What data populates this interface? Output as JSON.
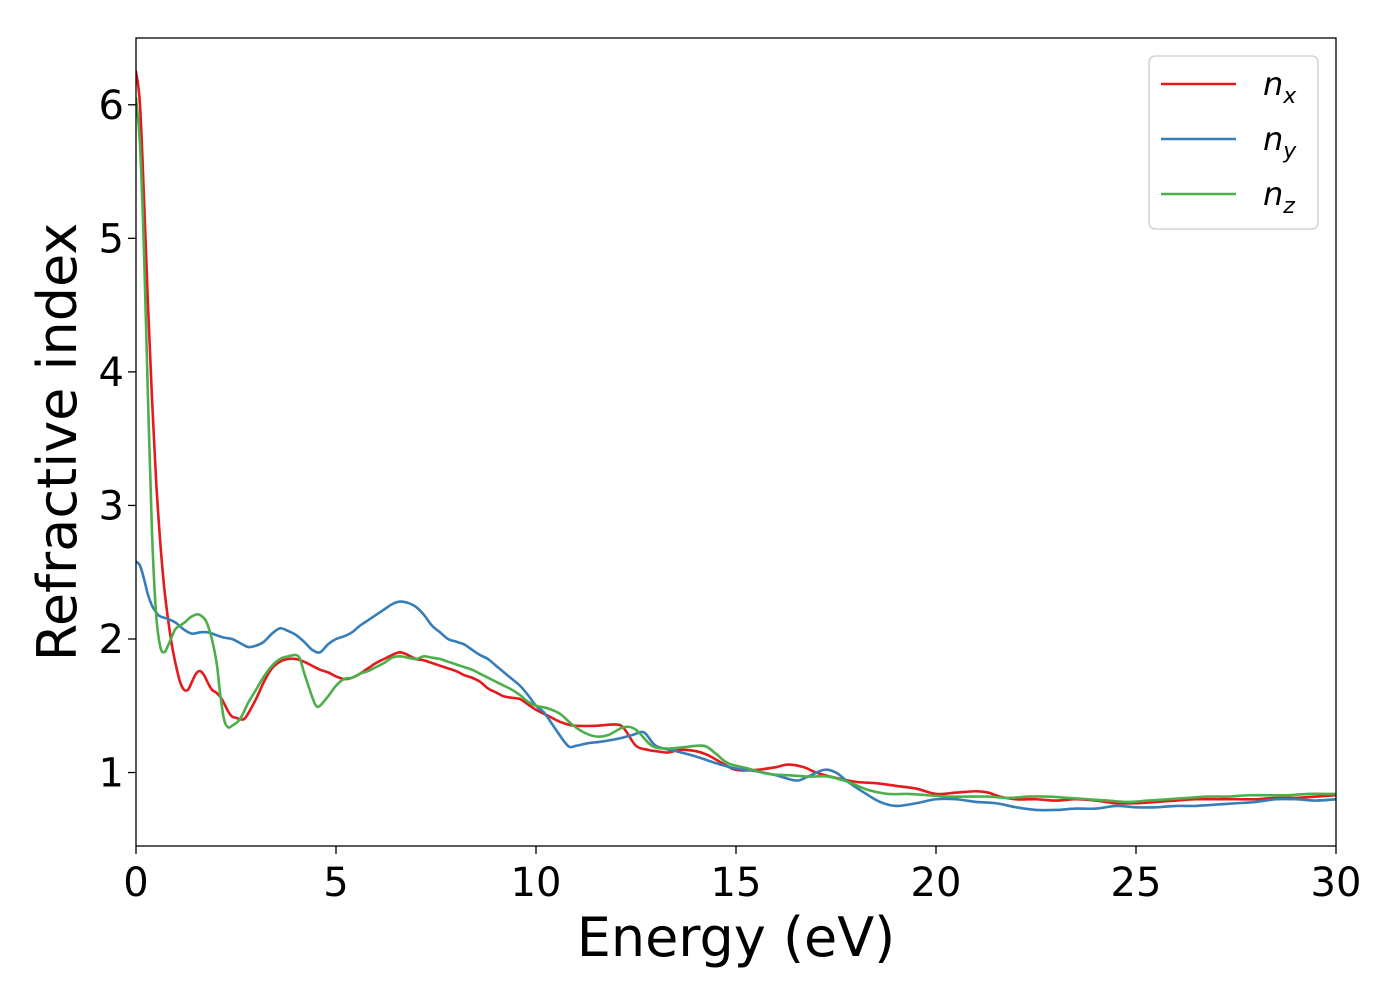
{
  "chart_data": {
    "type": "line",
    "title": "",
    "xlabel": "Energy (eV)",
    "ylabel": "Refractive index",
    "xlim": [
      0,
      30
    ],
    "ylim": [
      0.45,
      6.5
    ],
    "xticks": [
      0,
      5,
      10,
      15,
      20,
      25,
      30
    ],
    "yticks": [
      1,
      2,
      3,
      4,
      5,
      6
    ],
    "grid": false,
    "legend": "top-right",
    "series": [
      {
        "name": "n",
        "subscript": "x",
        "color": "#e41a1c",
        "points": [
          [
            0,
            6.25
          ],
          [
            0.1,
            6.0
          ],
          [
            0.2,
            5.3
          ],
          [
            0.3,
            4.5
          ],
          [
            0.4,
            3.8
          ],
          [
            0.5,
            3.2
          ],
          [
            0.6,
            2.75
          ],
          [
            0.7,
            2.4
          ],
          [
            0.8,
            2.15
          ],
          [
            0.9,
            1.95
          ],
          [
            1.0,
            1.8
          ],
          [
            1.1,
            1.68
          ],
          [
            1.2,
            1.62
          ],
          [
            1.3,
            1.62
          ],
          [
            1.4,
            1.68
          ],
          [
            1.5,
            1.74
          ],
          [
            1.6,
            1.76
          ],
          [
            1.7,
            1.73
          ],
          [
            1.8,
            1.67
          ],
          [
            1.9,
            1.62
          ],
          [
            2.0,
            1.6
          ],
          [
            2.1,
            1.57
          ],
          [
            2.2,
            1.52
          ],
          [
            2.3,
            1.46
          ],
          [
            2.4,
            1.42
          ],
          [
            2.5,
            1.41
          ],
          [
            2.6,
            1.4
          ],
          [
            2.7,
            1.4
          ],
          [
            2.8,
            1.44
          ],
          [
            3.0,
            1.55
          ],
          [
            3.2,
            1.68
          ],
          [
            3.4,
            1.78
          ],
          [
            3.6,
            1.83
          ],
          [
            3.8,
            1.85
          ],
          [
            4.0,
            1.85
          ],
          [
            4.2,
            1.83
          ],
          [
            4.4,
            1.8
          ],
          [
            4.6,
            1.77
          ],
          [
            4.8,
            1.75
          ],
          [
            5.0,
            1.72
          ],
          [
            5.2,
            1.7
          ],
          [
            5.4,
            1.71
          ],
          [
            5.6,
            1.74
          ],
          [
            5.8,
            1.78
          ],
          [
            6.0,
            1.82
          ],
          [
            6.2,
            1.85
          ],
          [
            6.4,
            1.88
          ],
          [
            6.6,
            1.9
          ],
          [
            6.8,
            1.88
          ],
          [
            7.0,
            1.85
          ],
          [
            7.2,
            1.84
          ],
          [
            7.4,
            1.82
          ],
          [
            7.6,
            1.8
          ],
          [
            7.8,
            1.78
          ],
          [
            8.0,
            1.76
          ],
          [
            8.2,
            1.73
          ],
          [
            8.4,
            1.71
          ],
          [
            8.6,
            1.68
          ],
          [
            8.8,
            1.63
          ],
          [
            9.0,
            1.6
          ],
          [
            9.2,
            1.57
          ],
          [
            9.4,
            1.56
          ],
          [
            9.6,
            1.55
          ],
          [
            9.8,
            1.51
          ],
          [
            10.0,
            1.47
          ],
          [
            10.2,
            1.44
          ],
          [
            10.4,
            1.41
          ],
          [
            10.6,
            1.38
          ],
          [
            10.8,
            1.36
          ],
          [
            11.0,
            1.35
          ],
          [
            11.5,
            1.35
          ],
          [
            12.0,
            1.36
          ],
          [
            12.2,
            1.33
          ],
          [
            12.5,
            1.2
          ],
          [
            12.8,
            1.17
          ],
          [
            13.0,
            1.16
          ],
          [
            13.3,
            1.15
          ],
          [
            13.6,
            1.17
          ],
          [
            14.0,
            1.16
          ],
          [
            14.3,
            1.13
          ],
          [
            14.6,
            1.08
          ],
          [
            15.0,
            1.02
          ],
          [
            15.5,
            1.02
          ],
          [
            16.0,
            1.04
          ],
          [
            16.3,
            1.06
          ],
          [
            16.7,
            1.04
          ],
          [
            17.0,
            1.0
          ],
          [
            17.5,
            0.96
          ],
          [
            18.0,
            0.93
          ],
          [
            18.5,
            0.92
          ],
          [
            19.0,
            0.9
          ],
          [
            19.5,
            0.88
          ],
          [
            20.0,
            0.84
          ],
          [
            20.5,
            0.85
          ],
          [
            21.0,
            0.86
          ],
          [
            21.3,
            0.85
          ],
          [
            21.6,
            0.82
          ],
          [
            22.0,
            0.8
          ],
          [
            22.5,
            0.8
          ],
          [
            23.0,
            0.79
          ],
          [
            23.5,
            0.8
          ],
          [
            24.0,
            0.79
          ],
          [
            24.5,
            0.77
          ],
          [
            25.0,
            0.77
          ],
          [
            25.5,
            0.78
          ],
          [
            26.0,
            0.79
          ],
          [
            26.5,
            0.8
          ],
          [
            27.0,
            0.8
          ],
          [
            27.5,
            0.8
          ],
          [
            28.0,
            0.8
          ],
          [
            28.5,
            0.81
          ],
          [
            29.0,
            0.81
          ],
          [
            29.5,
            0.82
          ],
          [
            30.0,
            0.83
          ]
        ]
      },
      {
        "name": "n",
        "subscript": "y",
        "color": "#377eb8",
        "points": [
          [
            0,
            2.58
          ],
          [
            0.1,
            2.55
          ],
          [
            0.2,
            2.45
          ],
          [
            0.3,
            2.33
          ],
          [
            0.4,
            2.25
          ],
          [
            0.5,
            2.2
          ],
          [
            0.6,
            2.17
          ],
          [
            0.8,
            2.15
          ],
          [
            1.0,
            2.12
          ],
          [
            1.2,
            2.07
          ],
          [
            1.4,
            2.04
          ],
          [
            1.6,
            2.05
          ],
          [
            1.8,
            2.05
          ],
          [
            2.0,
            2.03
          ],
          [
            2.2,
            2.01
          ],
          [
            2.4,
            2.0
          ],
          [
            2.6,
            1.97
          ],
          [
            2.8,
            1.94
          ],
          [
            3.0,
            1.95
          ],
          [
            3.2,
            1.98
          ],
          [
            3.4,
            2.04
          ],
          [
            3.6,
            2.08
          ],
          [
            3.8,
            2.06
          ],
          [
            4.0,
            2.03
          ],
          [
            4.2,
            1.98
          ],
          [
            4.4,
            1.92
          ],
          [
            4.6,
            1.9
          ],
          [
            4.8,
            1.96
          ],
          [
            5.0,
            2.0
          ],
          [
            5.2,
            2.02
          ],
          [
            5.4,
            2.05
          ],
          [
            5.6,
            2.1
          ],
          [
            5.8,
            2.14
          ],
          [
            6.0,
            2.18
          ],
          [
            6.2,
            2.22
          ],
          [
            6.4,
            2.26
          ],
          [
            6.6,
            2.28
          ],
          [
            6.8,
            2.27
          ],
          [
            7.0,
            2.24
          ],
          [
            7.2,
            2.18
          ],
          [
            7.4,
            2.1
          ],
          [
            7.6,
            2.05
          ],
          [
            7.8,
            2.0
          ],
          [
            8.0,
            1.98
          ],
          [
            8.2,
            1.96
          ],
          [
            8.4,
            1.92
          ],
          [
            8.6,
            1.88
          ],
          [
            8.8,
            1.85
          ],
          [
            9.0,
            1.8
          ],
          [
            9.2,
            1.75
          ],
          [
            9.4,
            1.7
          ],
          [
            9.6,
            1.65
          ],
          [
            9.8,
            1.58
          ],
          [
            10.0,
            1.5
          ],
          [
            10.2,
            1.45
          ],
          [
            10.5,
            1.32
          ],
          [
            10.8,
            1.2
          ],
          [
            11.0,
            1.2
          ],
          [
            11.3,
            1.22
          ],
          [
            11.6,
            1.23
          ],
          [
            12.0,
            1.25
          ],
          [
            12.4,
            1.28
          ],
          [
            12.7,
            1.3
          ],
          [
            13.0,
            1.2
          ],
          [
            13.5,
            1.16
          ],
          [
            14.0,
            1.12
          ],
          [
            14.5,
            1.07
          ],
          [
            15.0,
            1.03
          ],
          [
            15.5,
            1.01
          ],
          [
            16.0,
            0.98
          ],
          [
            16.5,
            0.94
          ],
          [
            16.8,
            0.97
          ],
          [
            17.2,
            1.02
          ],
          [
            17.5,
            1.0
          ],
          [
            17.8,
            0.93
          ],
          [
            18.2,
            0.85
          ],
          [
            18.6,
            0.78
          ],
          [
            19.0,
            0.75
          ],
          [
            19.5,
            0.77
          ],
          [
            20.0,
            0.8
          ],
          [
            20.5,
            0.8
          ],
          [
            21.0,
            0.78
          ],
          [
            21.5,
            0.77
          ],
          [
            22.0,
            0.74
          ],
          [
            22.5,
            0.72
          ],
          [
            23.0,
            0.72
          ],
          [
            23.5,
            0.73
          ],
          [
            24.0,
            0.73
          ],
          [
            24.5,
            0.75
          ],
          [
            25.0,
            0.74
          ],
          [
            25.5,
            0.74
          ],
          [
            26.0,
            0.75
          ],
          [
            26.5,
            0.75
          ],
          [
            27.0,
            0.76
          ],
          [
            27.5,
            0.77
          ],
          [
            28.0,
            0.78
          ],
          [
            28.5,
            0.8
          ],
          [
            29.0,
            0.8
          ],
          [
            29.5,
            0.79
          ],
          [
            30.0,
            0.8
          ]
        ]
      },
      {
        "name": "n",
        "subscript": "z",
        "color": "#4daf4a",
        "points": [
          [
            0,
            6.05
          ],
          [
            0.1,
            5.7
          ],
          [
            0.2,
            4.9
          ],
          [
            0.3,
            3.8
          ],
          [
            0.4,
            2.8
          ],
          [
            0.5,
            2.2
          ],
          [
            0.6,
            1.95
          ],
          [
            0.7,
            1.9
          ],
          [
            0.8,
            1.95
          ],
          [
            0.9,
            2.02
          ],
          [
            1.0,
            2.08
          ],
          [
            1.2,
            2.12
          ],
          [
            1.4,
            2.17
          ],
          [
            1.6,
            2.18
          ],
          [
            1.8,
            2.1
          ],
          [
            2.0,
            1.85
          ],
          [
            2.1,
            1.6
          ],
          [
            2.2,
            1.4
          ],
          [
            2.3,
            1.34
          ],
          [
            2.4,
            1.35
          ],
          [
            2.6,
            1.4
          ],
          [
            2.8,
            1.52
          ],
          [
            3.0,
            1.62
          ],
          [
            3.2,
            1.72
          ],
          [
            3.4,
            1.8
          ],
          [
            3.6,
            1.85
          ],
          [
            3.8,
            1.87
          ],
          [
            4.0,
            1.88
          ],
          [
            4.1,
            1.85
          ],
          [
            4.2,
            1.75
          ],
          [
            4.4,
            1.57
          ],
          [
            4.5,
            1.5
          ],
          [
            4.6,
            1.5
          ],
          [
            4.8,
            1.57
          ],
          [
            5.0,
            1.65
          ],
          [
            5.2,
            1.7
          ],
          [
            5.4,
            1.71
          ],
          [
            5.6,
            1.74
          ],
          [
            5.8,
            1.76
          ],
          [
            6.0,
            1.79
          ],
          [
            6.2,
            1.82
          ],
          [
            6.4,
            1.86
          ],
          [
            6.6,
            1.87
          ],
          [
            6.8,
            1.86
          ],
          [
            7.0,
            1.85
          ],
          [
            7.2,
            1.87
          ],
          [
            7.4,
            1.86
          ],
          [
            7.6,
            1.85
          ],
          [
            7.8,
            1.83
          ],
          [
            8.0,
            1.81
          ],
          [
            8.2,
            1.79
          ],
          [
            8.4,
            1.77
          ],
          [
            8.6,
            1.74
          ],
          [
            8.8,
            1.71
          ],
          [
            9.0,
            1.68
          ],
          [
            9.2,
            1.65
          ],
          [
            9.4,
            1.62
          ],
          [
            9.6,
            1.58
          ],
          [
            9.8,
            1.53
          ],
          [
            10.0,
            1.5
          ],
          [
            10.3,
            1.48
          ],
          [
            10.6,
            1.44
          ],
          [
            10.9,
            1.36
          ],
          [
            11.2,
            1.3
          ],
          [
            11.5,
            1.27
          ],
          [
            11.8,
            1.28
          ],
          [
            12.2,
            1.34
          ],
          [
            12.5,
            1.32
          ],
          [
            12.9,
            1.2
          ],
          [
            13.3,
            1.18
          ],
          [
            13.7,
            1.19
          ],
          [
            14.2,
            1.2
          ],
          [
            14.5,
            1.14
          ],
          [
            14.8,
            1.07
          ],
          [
            15.3,
            1.03
          ],
          [
            15.8,
            0.99
          ],
          [
            16.3,
            0.98
          ],
          [
            16.8,
            0.97
          ],
          [
            17.3,
            0.97
          ],
          [
            17.8,
            0.93
          ],
          [
            18.3,
            0.87
          ],
          [
            18.8,
            0.84
          ],
          [
            19.3,
            0.84
          ],
          [
            19.8,
            0.83
          ],
          [
            20.3,
            0.82
          ],
          [
            20.8,
            0.82
          ],
          [
            21.3,
            0.82
          ],
          [
            21.8,
            0.81
          ],
          [
            22.3,
            0.82
          ],
          [
            22.8,
            0.82
          ],
          [
            23.3,
            0.81
          ],
          [
            23.8,
            0.8
          ],
          [
            24.3,
            0.79
          ],
          [
            24.8,
            0.78
          ],
          [
            25.3,
            0.79
          ],
          [
            25.8,
            0.8
          ],
          [
            26.3,
            0.81
          ],
          [
            26.8,
            0.82
          ],
          [
            27.3,
            0.82
          ],
          [
            27.8,
            0.83
          ],
          [
            28.3,
            0.83
          ],
          [
            28.8,
            0.83
          ],
          [
            29.3,
            0.84
          ],
          [
            29.8,
            0.84
          ],
          [
            30.0,
            0.84
          ]
        ]
      }
    ]
  }
}
